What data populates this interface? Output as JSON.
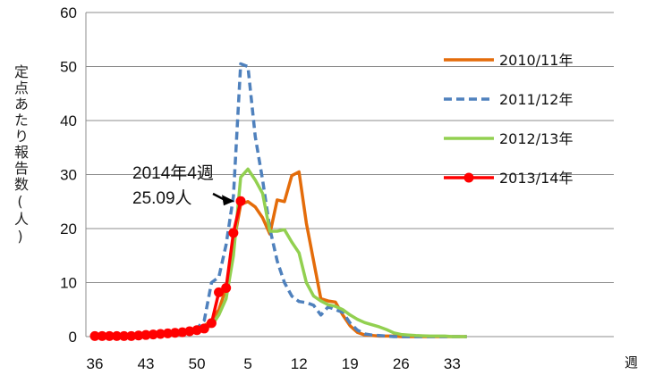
{
  "chart_data": {
    "type": "line",
    "ylabel": "定点あたり報告数(人)",
    "xunit": "週",
    "ylim": [
      0,
      60
    ],
    "yticks": [
      0,
      10,
      20,
      30,
      40,
      50,
      60
    ],
    "xtick_labels": [
      "36",
      "43",
      "50",
      "5",
      "12",
      "19",
      "26",
      "33"
    ],
    "grid": "horizontal",
    "legend_position": "right",
    "annotation": {
      "line1": "2014年4週",
      "line2": "25.09人",
      "week_index": 20,
      "value": 25.09
    },
    "series": [
      {
        "name": "2010/11年",
        "color": "#E46C0A",
        "style": "solid",
        "markers": false,
        "values": [
          0,
          0,
          0,
          0,
          0,
          0,
          0,
          0.2,
          0.3,
          0.4,
          0.5,
          0.6,
          0.8,
          1.0,
          1.5,
          2,
          3,
          5,
          9,
          17,
          24.5,
          25,
          24,
          22,
          19,
          25.3,
          25,
          29.8,
          30.5,
          21,
          14,
          7,
          6.6,
          6.4,
          4,
          2,
          0.8,
          0.3,
          0.2,
          0.1,
          0.1,
          0.1,
          0,
          0,
          0,
          0,
          0,
          0,
          0,
          0,
          0,
          0
        ]
      },
      {
        "name": "2011/12年",
        "color": "#4F81BD",
        "style": "dashed",
        "markers": false,
        "values": [
          0,
          0,
          0,
          0,
          0,
          0,
          0,
          0.2,
          0.3,
          0.4,
          0.5,
          0.6,
          0.8,
          1,
          1.5,
          3,
          10,
          11,
          17,
          26,
          50.5,
          50,
          37,
          29,
          20,
          14,
          10,
          7.5,
          6.5,
          6.3,
          5.8,
          4,
          5.5,
          5,
          4.5,
          2.5,
          1.2,
          0.5,
          0.3,
          0.2,
          0.1,
          0,
          0,
          0,
          0,
          0,
          0,
          0,
          0,
          0,
          0,
          0
        ]
      },
      {
        "name": "2012/13年",
        "color": "#92D050",
        "style": "solid",
        "markers": false,
        "values": [
          0,
          0,
          0,
          0,
          0,
          0,
          0,
          0.2,
          0.3,
          0.4,
          0.5,
          0.6,
          0.8,
          1,
          1.2,
          1.5,
          2,
          4,
          7,
          15,
          29.5,
          31,
          29,
          26.5,
          19.5,
          19.5,
          19.8,
          17.5,
          15.5,
          10,
          7.5,
          6.6,
          5.9,
          5.6,
          5,
          4,
          3.2,
          2.6,
          2.2,
          1.8,
          1.3,
          0.7,
          0.4,
          0.3,
          0.2,
          0.15,
          0.1,
          0.1,
          0.1,
          0,
          0,
          0
        ]
      },
      {
        "name": "2013/14年",
        "color": "#FF0000",
        "style": "solid",
        "markers": true,
        "values": [
          0.1,
          0.1,
          0.1,
          0.1,
          0.1,
          0.1,
          0.2,
          0.3,
          0.4,
          0.5,
          0.6,
          0.7,
          0.8,
          1.0,
          1.2,
          1.5,
          2.5,
          8.2,
          9.0,
          19.2,
          25.09
        ]
      }
    ]
  }
}
